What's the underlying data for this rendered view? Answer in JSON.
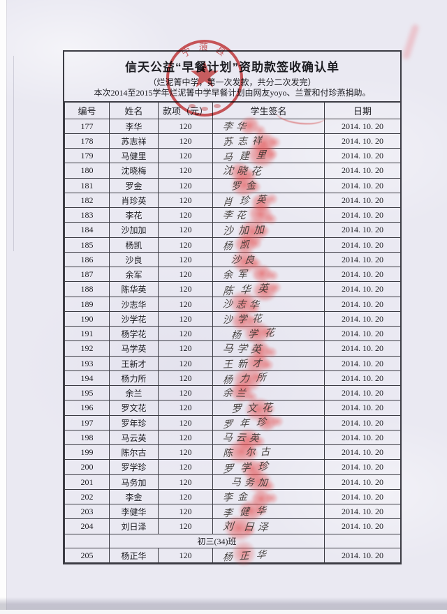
{
  "document": {
    "title": "信天公益“早餐计划”资助款签收确认单",
    "subtitle1": "（烂泥箐中学，第一次发款，共分二次发完）",
    "subtitle2": "本次2014至2015学年烂泥箐中学早餐计划由网友yoyo、兰萱和付珍燕捐助。",
    "seal": {
      "type": "circular-red-seal-with-star",
      "visible_text": "宁蒗县",
      "color": "#cf3a3a"
    },
    "table": {
      "headers": [
        "编号",
        "姓名",
        "款项（元）",
        "学生签名",
        "日期"
      ],
      "class_note": "初三(34)班",
      "rows": [
        {
          "id": "177",
          "name": "李华",
          "amount": "120",
          "signature": "李华",
          "date": "2014. 10. 20"
        },
        {
          "id": "178",
          "name": "苏志祥",
          "amount": "120",
          "signature": "苏志祥",
          "date": "2014. 10. 20"
        },
        {
          "id": "179",
          "name": "马健里",
          "amount": "120",
          "signature": "马建里",
          "date": "2014. 10. 20"
        },
        {
          "id": "180",
          "name": "沈晓梅",
          "amount": "120",
          "signature": "沈晓花",
          "date": "2014. 10. 20"
        },
        {
          "id": "181",
          "name": "罗金",
          "amount": "120",
          "signature": "罗金",
          "date": "2014. 10. 20"
        },
        {
          "id": "182",
          "name": "肖珍英",
          "amount": "120",
          "signature": "肖珍英",
          "date": "2014. 10. 20"
        },
        {
          "id": "183",
          "name": "李花",
          "amount": "120",
          "signature": "李花",
          "date": "2014. 10. 20"
        },
        {
          "id": "184",
          "name": "沙加加",
          "amount": "120",
          "signature": "沙加加",
          "date": "2014. 10. 20"
        },
        {
          "id": "185",
          "name": "杨凯",
          "amount": "120",
          "signature": "杨凯",
          "date": "2014. 10. 20"
        },
        {
          "id": "186",
          "name": "沙良",
          "amount": "120",
          "signature": "沙良",
          "date": "2014. 10. 20"
        },
        {
          "id": "187",
          "name": "余军",
          "amount": "120",
          "signature": "余军",
          "date": "2014. 10. 20"
        },
        {
          "id": "188",
          "name": "陈华英",
          "amount": "120",
          "signature": "陈华英",
          "date": "2014. 10. 20"
        },
        {
          "id": "189",
          "name": "沙志华",
          "amount": "120",
          "signature": "沙志华",
          "date": "2014. 10. 20"
        },
        {
          "id": "190",
          "name": "沙学花",
          "amount": "120",
          "signature": "沙学花",
          "date": "2014. 10. 20"
        },
        {
          "id": "191",
          "name": "杨学花",
          "amount": "120",
          "signature": "杨学花",
          "date": "2014. 10. 20"
        },
        {
          "id": "192",
          "name": "马学英",
          "amount": "120",
          "signature": "马学英",
          "date": "2014. 10. 20"
        },
        {
          "id": "193",
          "name": "王新才",
          "amount": "120",
          "signature": "王新才",
          "date": "2014. 10. 20"
        },
        {
          "id": "194",
          "name": "杨力所",
          "amount": "120",
          "signature": "杨力所",
          "date": "2014. 10. 20"
        },
        {
          "id": "195",
          "name": "余兰",
          "amount": "120",
          "signature": "余兰",
          "date": "2014. 10. 20"
        },
        {
          "id": "196",
          "name": "罗文花",
          "amount": "120",
          "signature": "罗文花",
          "date": "2014. 10. 20"
        },
        {
          "id": "197",
          "name": "罗年珍",
          "amount": "120",
          "signature": "罗年珍",
          "date": "2014. 10. 20"
        },
        {
          "id": "198",
          "name": "马云英",
          "amount": "120",
          "signature": "马云英",
          "date": "2014. 10. 20"
        },
        {
          "id": "199",
          "name": "陈尔古",
          "amount": "120",
          "signature": "陈 尔古",
          "date": "2014. 10. 20"
        },
        {
          "id": "200",
          "name": "罗学珍",
          "amount": "120",
          "signature": "罗学珍",
          "date": "2014. 10. 20"
        },
        {
          "id": "201",
          "name": "马务加",
          "amount": "120",
          "signature": "马务加",
          "date": "2014. 10. 20"
        },
        {
          "id": "202",
          "name": "李金",
          "amount": "120",
          "signature": "李金",
          "date": "2014. 10. 20"
        },
        {
          "id": "203",
          "name": "李健华",
          "amount": "120",
          "signature": "李健华",
          "date": "2014. 10. 20"
        },
        {
          "id": "204",
          "name": "刘日泽",
          "amount": "120",
          "signature": "刘 日泽",
          "date": "2014. 10. 20"
        }
      ],
      "extra_row": {
        "id": "205",
        "name": "杨正华",
        "amount": "120",
        "signature": "杨正华",
        "date": "2014. 10. 20"
      }
    }
  }
}
